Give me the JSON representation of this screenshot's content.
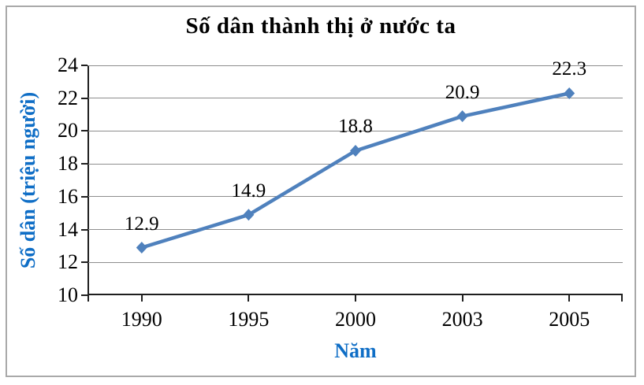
{
  "chart_data": {
    "type": "line",
    "title": "Số dân thành thị ở nước ta",
    "xlabel": "Năm",
    "ylabel": "Số dân (triệu người)",
    "categories": [
      "1990",
      "1995",
      "2000",
      "2003",
      "2005"
    ],
    "values": [
      12.9,
      14.9,
      18.8,
      20.9,
      22.3
    ],
    "data_labels": [
      "12.9",
      "14.9",
      "18.8",
      "20.9",
      "22.3"
    ],
    "yticks": [
      24,
      22,
      20,
      18,
      16,
      14,
      12,
      10
    ],
    "ylim": [
      10,
      24
    ],
    "grid": "horizontal",
    "legend": "none",
    "marker": "diamond",
    "colors": {
      "line": "#4f81bd",
      "marker": "#4f81bd",
      "gridline": "#8e8e8e",
      "axis": "#1f1f1f",
      "axis_title": "#0f6ec6",
      "tick_text": "#000000",
      "title_text": "#000000",
      "frame_border": "#a9a9a9"
    }
  }
}
